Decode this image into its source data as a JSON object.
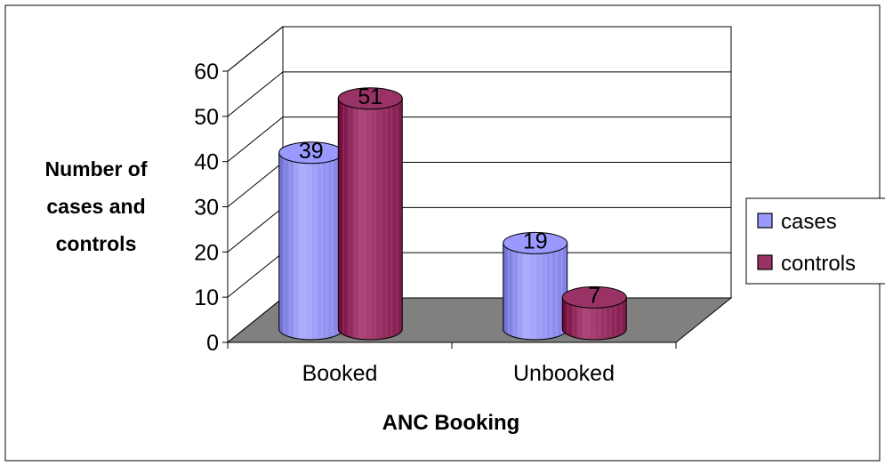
{
  "chart_data": {
    "type": "bar",
    "style": "3d-cylinder",
    "categories": [
      "Booked",
      "Unbooked"
    ],
    "series": [
      {
        "name": "cases",
        "values": [
          39,
          19
        ],
        "color": "#9999ff"
      },
      {
        "name": "controls",
        "values": [
          51,
          7
        ],
        "color": "#993366"
      }
    ],
    "data_labels": true,
    "xlabel": "ANC Booking",
    "ylabel_lines": [
      "Number of",
      "cases and",
      "controls"
    ],
    "ylim": [
      0,
      60
    ],
    "yticks": [
      0,
      10,
      20,
      30,
      40,
      50,
      60
    ],
    "grid": true,
    "floor_color": "#808080",
    "legend_position": "right"
  }
}
